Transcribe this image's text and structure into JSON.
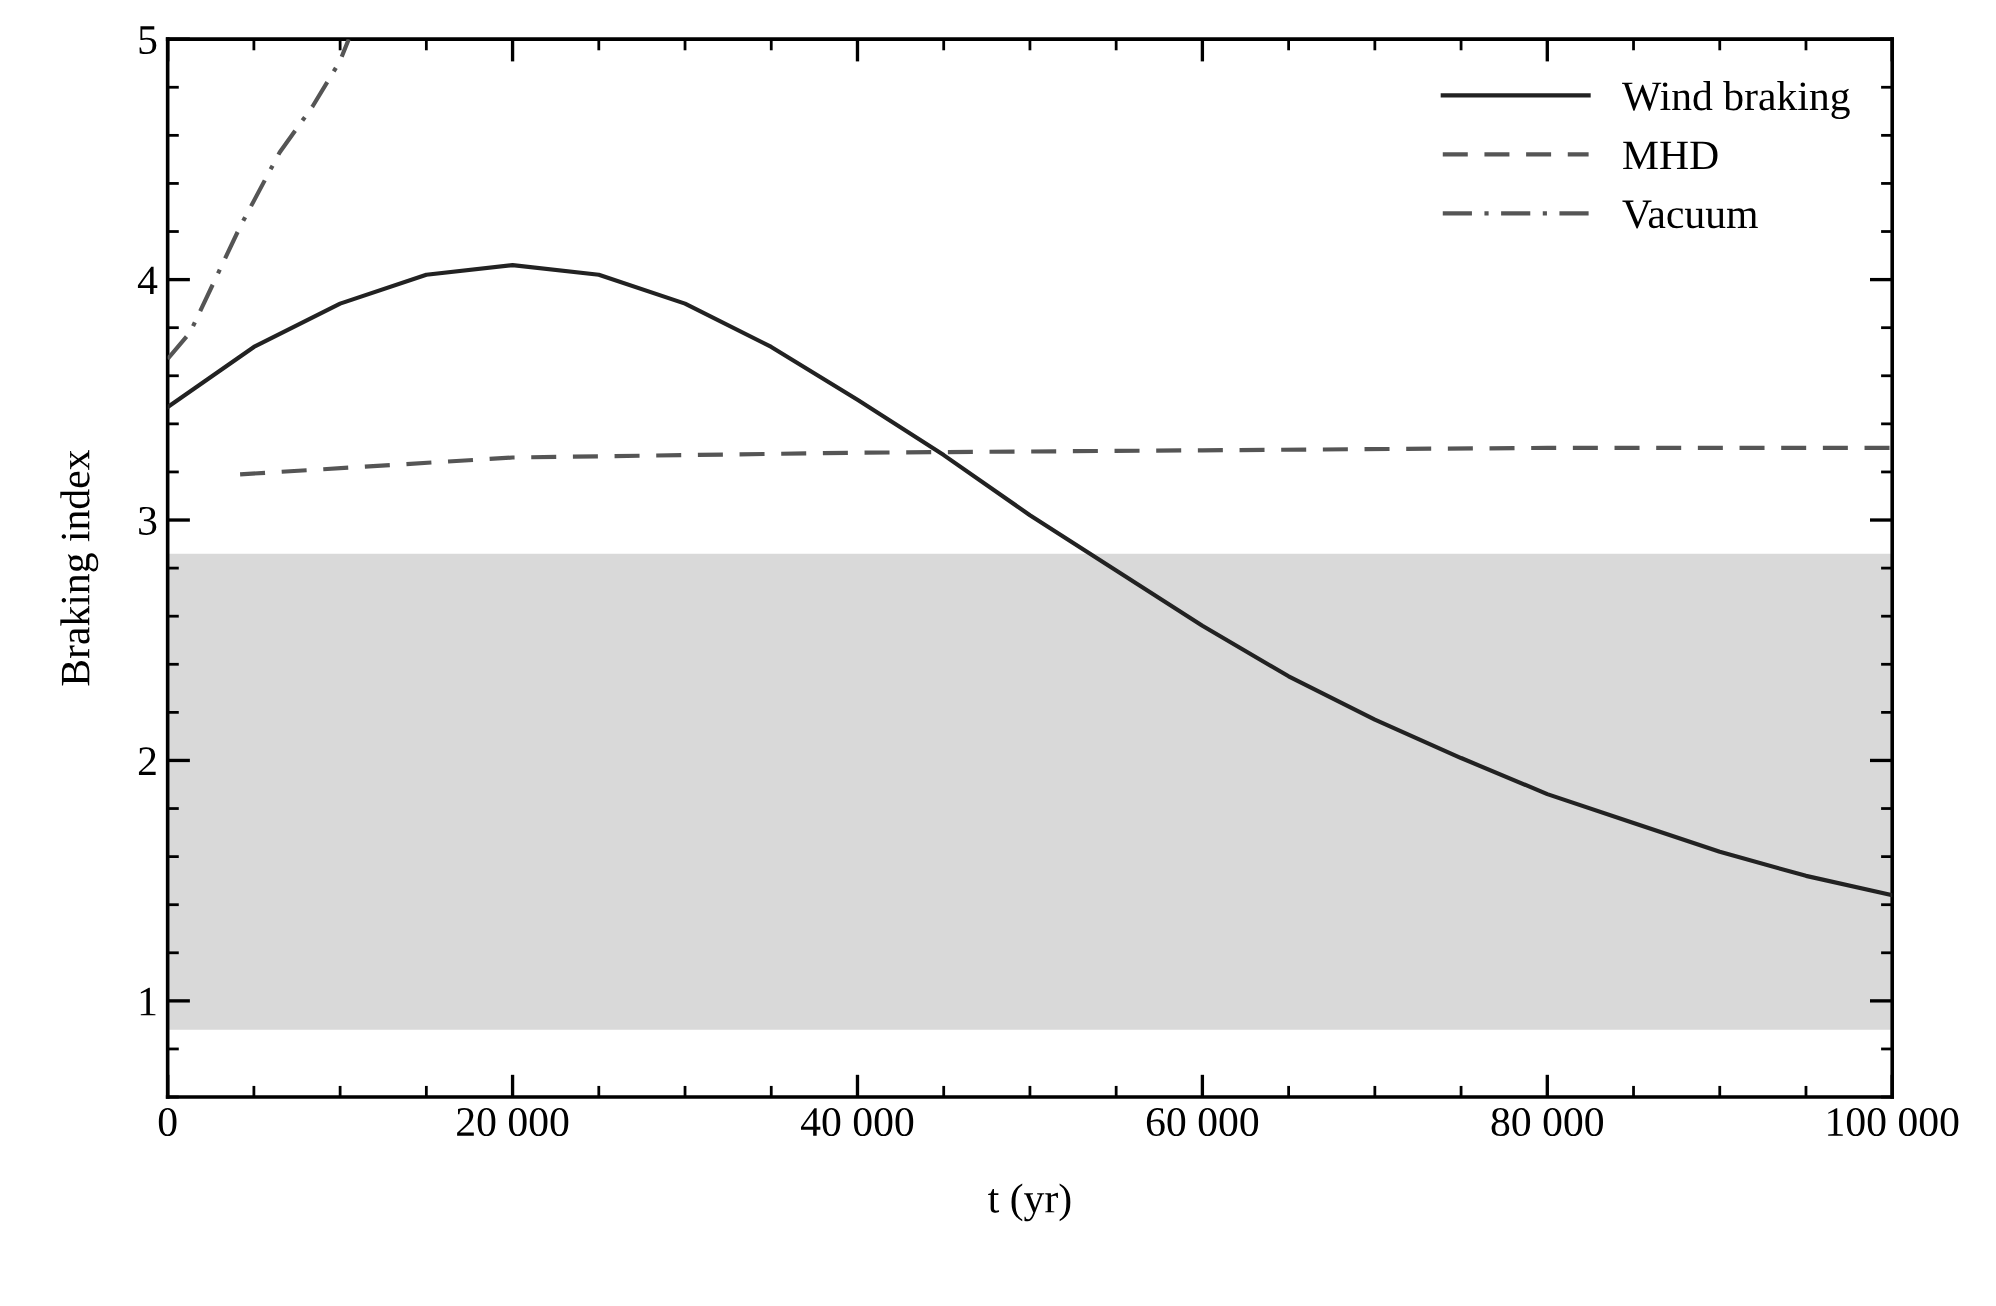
{
  "chart_data": {
    "type": "line",
    "xlabel": "t (yr)",
    "ylabel": "Braking index",
    "xlim": [
      0,
      100000
    ],
    "ylim": [
      0.6,
      5
    ],
    "xticks": [
      {
        "value": 0,
        "label": "0"
      },
      {
        "value": 20000,
        "label": "20 000"
      },
      {
        "value": 40000,
        "label": "40 000"
      },
      {
        "value": 60000,
        "label": "60 000"
      },
      {
        "value": 80000,
        "label": "80 000"
      },
      {
        "value": 100000,
        "label": "100 000"
      }
    ],
    "yticks": [
      1,
      2,
      3,
      4,
      5
    ],
    "grid": false,
    "legend": "top right",
    "marker": "none",
    "bands": [
      {
        "axis": "y",
        "from": 0.88,
        "to": 2.86,
        "color": "#d9d9d9"
      }
    ],
    "series": [
      {
        "name": "Wind braking",
        "color": "#222222",
        "line_style": "solid",
        "x": [
          0,
          5000,
          10000,
          15000,
          20000,
          25000,
          30000,
          35000,
          40000,
          45000,
          50000,
          55000,
          60000,
          65000,
          70000,
          75000,
          80000,
          85000,
          90000,
          95000,
          100000
        ],
        "values": [
          3.47,
          3.72,
          3.9,
          4.02,
          4.06,
          4.02,
          3.9,
          3.72,
          3.5,
          3.27,
          3.02,
          2.79,
          2.56,
          2.35,
          2.17,
          2.01,
          1.86,
          1.74,
          1.62,
          1.52,
          1.44
        ]
      },
      {
        "name": "MHD",
        "color": "#555555",
        "line_style": "dashed",
        "x": [
          4200,
          20000,
          40000,
          60000,
          80000,
          100000
        ],
        "values": [
          3.19,
          3.26,
          3.28,
          3.29,
          3.3,
          3.3
        ]
      },
      {
        "name": "Vacuum",
        "color": "#555555",
        "line_style": "dashdot",
        "x": [
          0,
          1300,
          4200,
          6500,
          8400,
          10000,
          10500
        ],
        "values": [
          3.67,
          3.78,
          4.22,
          4.53,
          4.72,
          4.91,
          5.0
        ]
      }
    ]
  }
}
